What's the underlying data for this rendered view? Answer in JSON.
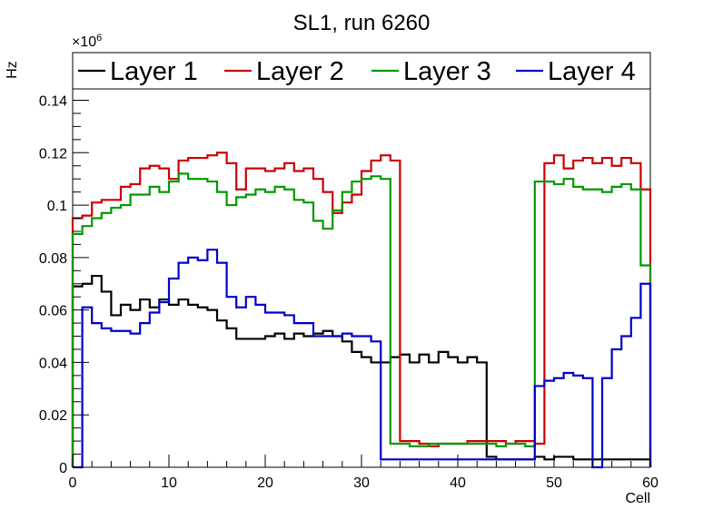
{
  "chart_data": {
    "type": "line",
    "title": "SL1, run 6260",
    "xlabel": "Cell",
    "ylabel": "Hz",
    "y_exponent_label": "×10",
    "y_exponent": "6",
    "xlim": [
      0,
      60
    ],
    "ylim": [
      0,
      0.145
    ],
    "x_ticks": [
      0,
      10,
      20,
      30,
      40,
      50,
      60
    ],
    "x_tick_labels": [
      "0",
      "10",
      "20",
      "30",
      "40",
      "50",
      "60"
    ],
    "y_ticks": [
      0,
      0.02,
      0.04,
      0.06,
      0.08,
      0.1,
      0.12,
      0.14
    ],
    "y_tick_labels": [
      "0",
      "0.02",
      "0.04",
      "0.06",
      "0.08",
      "0.1",
      "0.12",
      "0.14"
    ],
    "legend_position": "top",
    "series": [
      {
        "name": "Layer 1",
        "color": "#000000",
        "values": [
          0.069,
          0.07,
          0.073,
          0.067,
          0.058,
          0.062,
          0.06,
          0.064,
          0.061,
          0.064,
          0.062,
          0.064,
          0.062,
          0.061,
          0.06,
          0.056,
          0.053,
          0.049,
          0.049,
          0.049,
          0.05,
          0.051,
          0.049,
          0.051,
          0.05,
          0.051,
          0.052,
          0.05,
          0.048,
          0.044,
          0.042,
          0.04,
          0.04,
          0.042,
          0.043,
          0.04,
          0.043,
          0.04,
          0.044,
          0.042,
          0.04,
          0.042,
          0.04,
          0.004,
          0.003,
          0.003,
          0.003,
          0.003,
          0.004,
          0.003,
          0.004,
          0.004,
          0.003,
          0.003,
          0.003,
          0.003,
          0.003,
          0.003,
          0.003,
          0.003
        ]
      },
      {
        "name": "Layer 2",
        "color": "#cc0000",
        "values": [
          0.095,
          0.096,
          0.101,
          0.102,
          0.102,
          0.107,
          0.108,
          0.114,
          0.115,
          0.114,
          0.11,
          0.117,
          0.118,
          0.118,
          0.119,
          0.12,
          0.116,
          0.106,
          0.114,
          0.114,
          0.113,
          0.114,
          0.116,
          0.113,
          0.114,
          0.11,
          0.105,
          0.097,
          0.101,
          0.104,
          0.113,
          0.117,
          0.119,
          0.117,
          0.01,
          0.01,
          0.009,
          0.008,
          0.009,
          0.009,
          0.009,
          0.01,
          0.01,
          0.01,
          0.01,
          0.009,
          0.01,
          0.01,
          0.009,
          0.116,
          0.119,
          0.114,
          0.117,
          0.118,
          0.116,
          0.118,
          0.115,
          0.118,
          0.116,
          0.106
        ]
      },
      {
        "name": "Layer 3",
        "color": "#009900",
        "values": [
          0.089,
          0.092,
          0.095,
          0.097,
          0.099,
          0.1,
          0.104,
          0.104,
          0.107,
          0.105,
          0.109,
          0.112,
          0.11,
          0.11,
          0.109,
          0.105,
          0.1,
          0.103,
          0.104,
          0.106,
          0.105,
          0.107,
          0.106,
          0.102,
          0.101,
          0.094,
          0.091,
          0.098,
          0.105,
          0.109,
          0.11,
          0.111,
          0.11,
          0.009,
          0.009,
          0.008,
          0.008,
          0.009,
          0.009,
          0.009,
          0.009,
          0.009,
          0.009,
          0.009,
          0.008,
          0.009,
          0.009,
          0.008,
          0.109,
          0.109,
          0.108,
          0.11,
          0.107,
          0.106,
          0.106,
          0.105,
          0.107,
          0.108,
          0.106,
          0.077
        ]
      },
      {
        "name": "Layer 4",
        "color": "#0000cc",
        "values": [
          0.0,
          0.061,
          0.055,
          0.053,
          0.052,
          0.052,
          0.051,
          0.055,
          0.059,
          0.063,
          0.072,
          0.078,
          0.08,
          0.079,
          0.083,
          0.078,
          0.065,
          0.061,
          0.065,
          0.062,
          0.059,
          0.059,
          0.058,
          0.055,
          0.055,
          0.05,
          0.05,
          0.05,
          0.051,
          0.05,
          0.05,
          0.048,
          0.003,
          0.003,
          0.003,
          0.003,
          0.003,
          0.003,
          0.003,
          0.003,
          0.003,
          0.003,
          0.003,
          0.003,
          0.003,
          0.003,
          0.003,
          0.003,
          0.031,
          0.033,
          0.034,
          0.036,
          0.035,
          0.034,
          0.0,
          0.034,
          0.045,
          0.05,
          0.057,
          0.07
        ]
      }
    ]
  }
}
